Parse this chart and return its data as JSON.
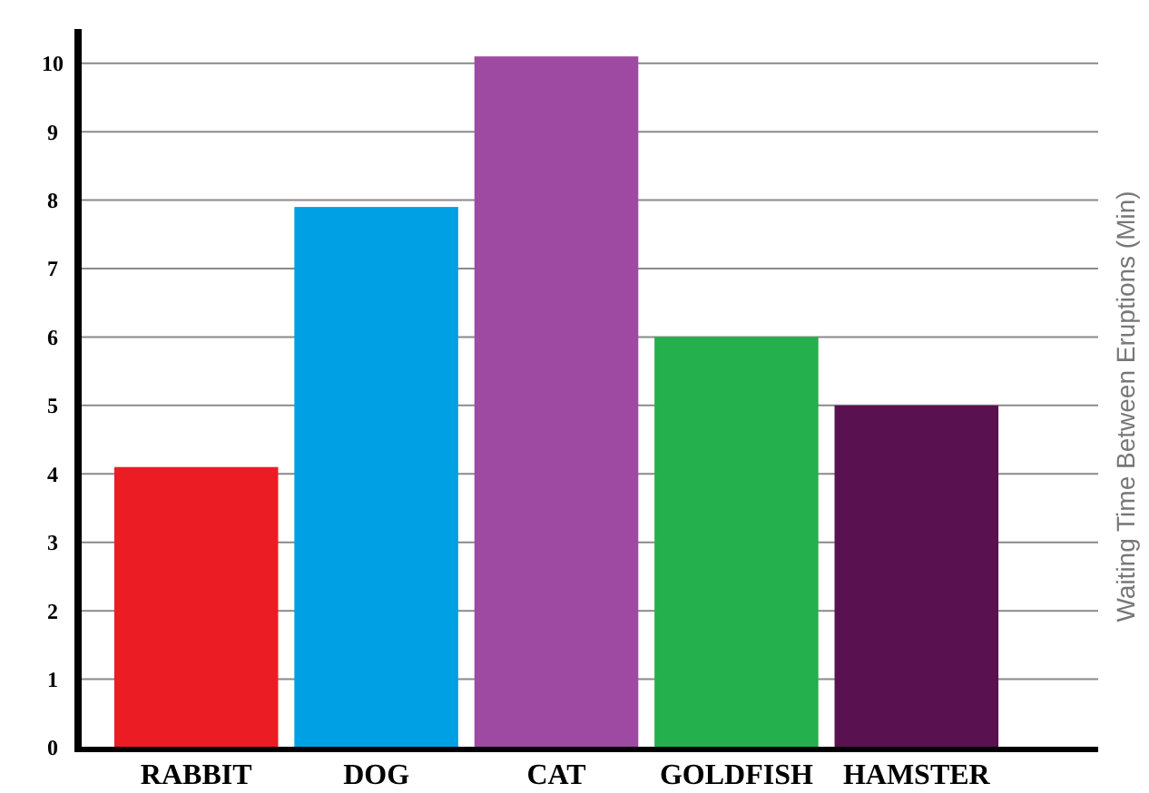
{
  "chart_data": {
    "type": "bar",
    "ylabel": "Waiting Time Between Eruptions (Min)",
    "categories": [
      "RABBIT",
      "DOG",
      "CAT",
      "GOLDFISH",
      "HAMSTER"
    ],
    "values": [
      4.1,
      7.9,
      10.1,
      6,
      5
    ],
    "colors": [
      "#ec1c24",
      "#00a0e4",
      "#9e49a2",
      "#23b04d",
      "#5a1150"
    ],
    "ylim": [
      0,
      10.5
    ],
    "yticks": [
      0,
      1,
      2,
      3,
      4,
      5,
      6,
      7,
      8,
      9,
      10
    ],
    "grid": "y"
  }
}
